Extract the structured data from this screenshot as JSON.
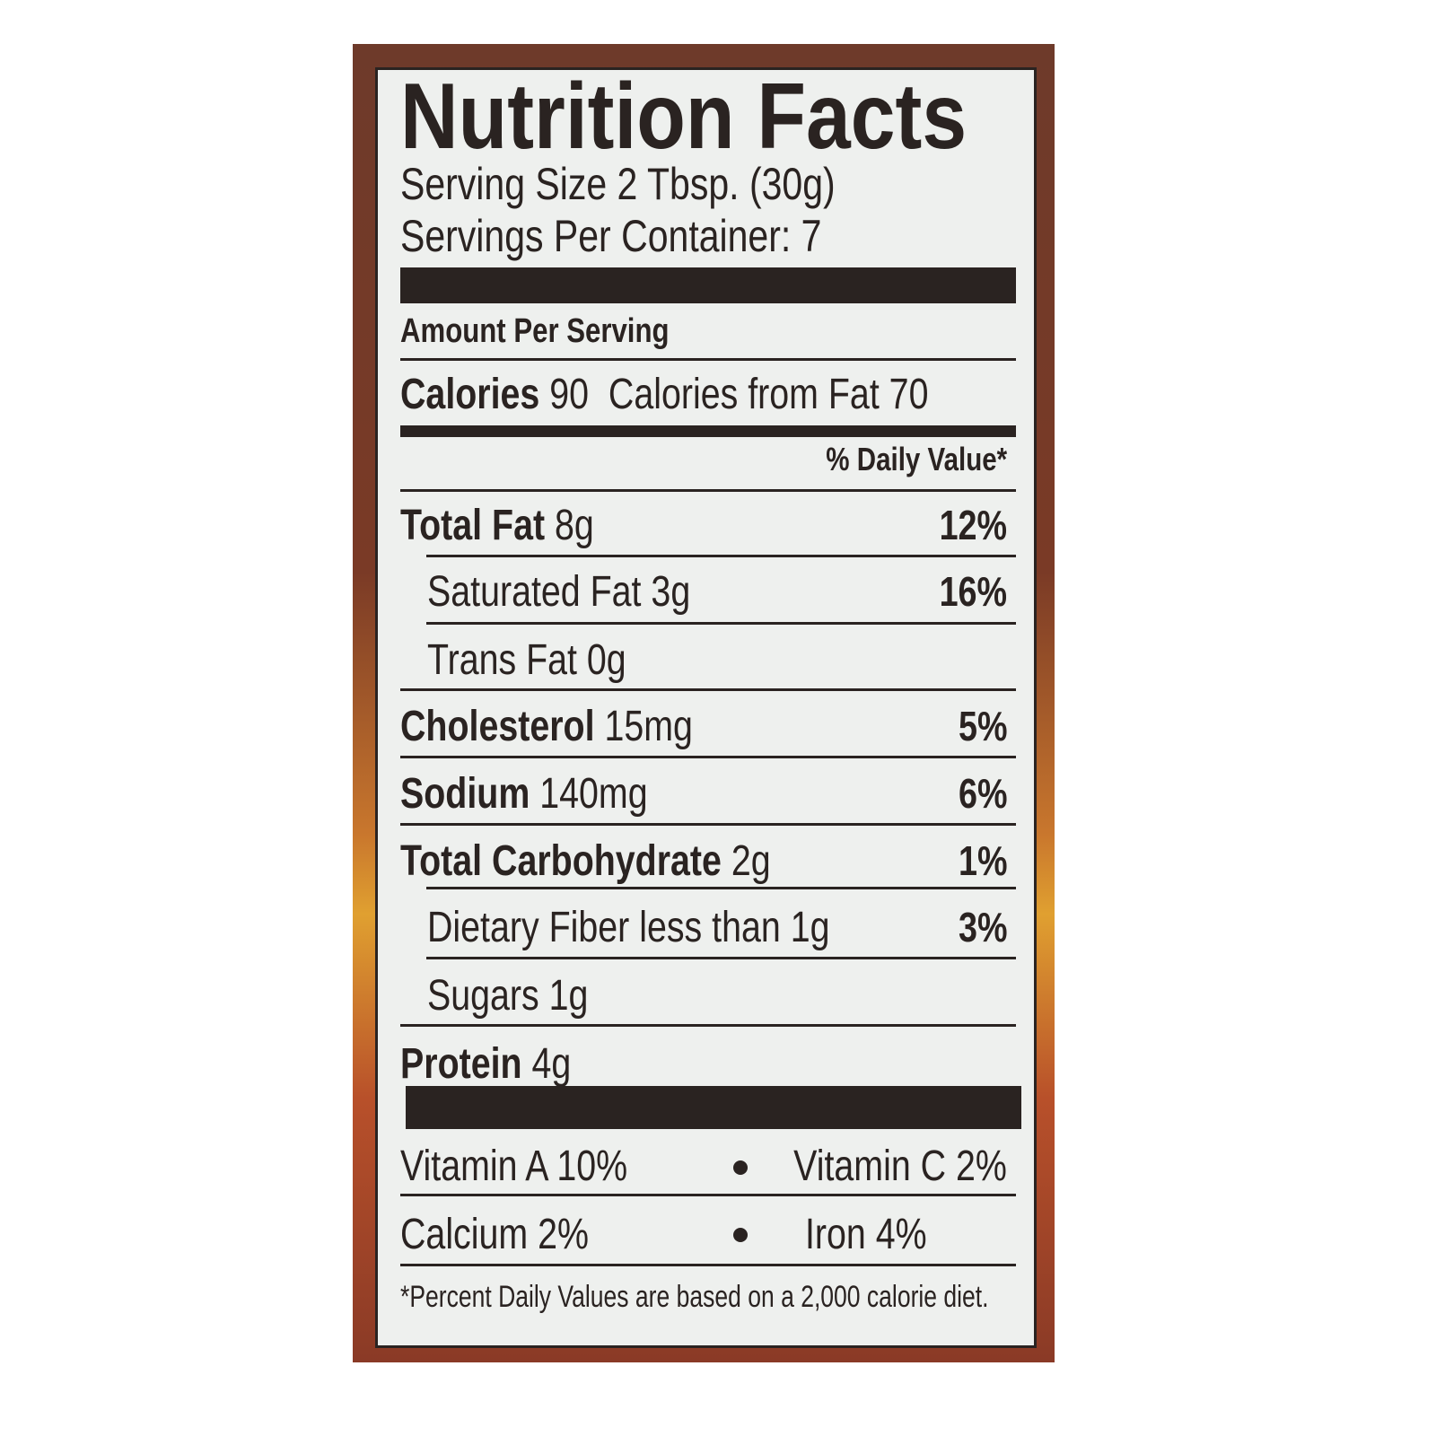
{
  "title": "Nutrition Facts",
  "serving_size": "Serving Size 2 Tbsp. (30g)",
  "servings_per_container": "Servings Per Container: 7",
  "amount_per_serving": "Amount Per Serving",
  "calories": {
    "label": "Calories",
    "value": "90",
    "from_fat": "Calories from Fat 70"
  },
  "daily_value_header": "% Daily Value*",
  "nutrients": [
    {
      "label": "Total Fat",
      "amount": "8g",
      "dv": "12%"
    },
    {
      "label": "Saturated Fat",
      "amount": "3g",
      "dv": "16%"
    },
    {
      "label": "Trans Fat",
      "amount": "0g",
      "dv": ""
    },
    {
      "label": "Cholesterol",
      "amount": "15mg",
      "dv": "5%"
    },
    {
      "label": "Sodium",
      "amount": "140mg",
      "dv": "6%"
    },
    {
      "label": "Total Carbohydrate",
      "amount": "2g",
      "dv": "1%"
    },
    {
      "label": "Dietary Fiber",
      "amount": "less than 1g",
      "dv": "3%"
    },
    {
      "label": "Sugars",
      "amount": "1g",
      "dv": ""
    },
    {
      "label": "Protein",
      "amount": "4g",
      "dv": ""
    }
  ],
  "vitamins": [
    {
      "left": "Vitamin A 10%",
      "right": "Vitamin C 2%"
    },
    {
      "left": "Calcium 2%",
      "right": "Iron 4%"
    }
  ],
  "footnote": "*Percent Daily Values are based on a 2,000 calorie diet.",
  "colors": {
    "ink": "#2a2321",
    "label_bg": "#eef0ee"
  }
}
